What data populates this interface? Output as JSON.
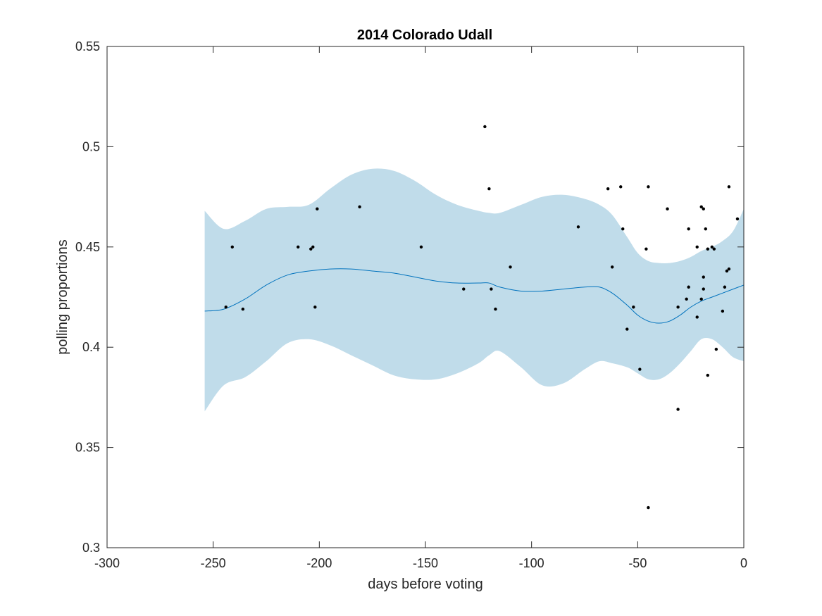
{
  "chart_data": {
    "type": "scatter",
    "title": "2014 Colorado Udall",
    "xlabel": "days before voting",
    "ylabel": "polling proportions",
    "xlim": [
      -300,
      0
    ],
    "ylim": [
      0.3,
      0.55
    ],
    "xticks": [
      -300,
      -250,
      -200,
      -150,
      -100,
      -50,
      0
    ],
    "xtick_labels": [
      "-300",
      "-250",
      "-200",
      "-150",
      "-100",
      "-50",
      "0"
    ],
    "yticks": [
      0.3,
      0.35,
      0.4,
      0.45,
      0.5,
      0.55
    ],
    "ytick_labels": [
      "0.3",
      "0.35",
      "0.4",
      "0.45",
      "0.5",
      "0.55"
    ],
    "grid": false,
    "colors": {
      "band": "#c0dcea",
      "mean_line": "#0072bd",
      "points": "#000000",
      "axes": "#262626"
    },
    "points": [
      {
        "x": -244,
        "y": 0.42
      },
      {
        "x": -241,
        "y": 0.45
      },
      {
        "x": -236,
        "y": 0.419
      },
      {
        "x": -210,
        "y": 0.45
      },
      {
        "x": -204,
        "y": 0.449
      },
      {
        "x": -203,
        "y": 0.45
      },
      {
        "x": -202,
        "y": 0.42
      },
      {
        "x": -201,
        "y": 0.469
      },
      {
        "x": -181,
        "y": 0.47
      },
      {
        "x": -152,
        "y": 0.45
      },
      {
        "x": -132,
        "y": 0.429
      },
      {
        "x": -122,
        "y": 0.51
      },
      {
        "x": -120,
        "y": 0.479
      },
      {
        "x": -119,
        "y": 0.429
      },
      {
        "x": -117,
        "y": 0.419
      },
      {
        "x": -110,
        "y": 0.44
      },
      {
        "x": -78,
        "y": 0.46
      },
      {
        "x": -64,
        "y": 0.479
      },
      {
        "x": -62,
        "y": 0.44
      },
      {
        "x": -58,
        "y": 0.48
      },
      {
        "x": -57,
        "y": 0.459
      },
      {
        "x": -55,
        "y": 0.409
      },
      {
        "x": -52,
        "y": 0.42
      },
      {
        "x": -49,
        "y": 0.389
      },
      {
        "x": -46,
        "y": 0.449
      },
      {
        "x": -45,
        "y": 0.48
      },
      {
        "x": -45,
        "y": 0.32
      },
      {
        "x": -36,
        "y": 0.469
      },
      {
        "x": -31,
        "y": 0.42
      },
      {
        "x": -31,
        "y": 0.369
      },
      {
        "x": -27,
        "y": 0.424
      },
      {
        "x": -26,
        "y": 0.459
      },
      {
        "x": -26,
        "y": 0.43
      },
      {
        "x": -22,
        "y": 0.45
      },
      {
        "x": -22,
        "y": 0.415
      },
      {
        "x": -20,
        "y": 0.47
      },
      {
        "x": -20,
        "y": 0.424
      },
      {
        "x": -19,
        "y": 0.469
      },
      {
        "x": -19,
        "y": 0.435
      },
      {
        "x": -19,
        "y": 0.429
      },
      {
        "x": -18,
        "y": 0.459
      },
      {
        "x": -17,
        "y": 0.449
      },
      {
        "x": -17,
        "y": 0.386
      },
      {
        "x": -15,
        "y": 0.45
      },
      {
        "x": -14,
        "y": 0.449
      },
      {
        "x": -13,
        "y": 0.399
      },
      {
        "x": -10,
        "y": 0.418
      },
      {
        "x": -9,
        "y": 0.43
      },
      {
        "x": -8,
        "y": 0.438
      },
      {
        "x": -7,
        "y": 0.439
      },
      {
        "x": -7,
        "y": 0.48
      },
      {
        "x": -3,
        "y": 0.464
      }
    ],
    "mean_line": {
      "x": [
        -254,
        -245,
        -235,
        -225,
        -215,
        -205,
        -195,
        -185,
        -175,
        -165,
        -155,
        -145,
        -135,
        -125,
        -120,
        -115,
        -105,
        -95,
        -85,
        -75,
        -68,
        -62,
        -55,
        -50,
        -45,
        -40,
        -35,
        -30,
        -25,
        -20,
        -15,
        -10,
        -5,
        0
      ],
      "y": [
        0.418,
        0.419,
        0.424,
        0.431,
        0.436,
        0.438,
        0.439,
        0.439,
        0.438,
        0.437,
        0.435,
        0.433,
        0.432,
        0.432,
        0.432,
        0.43,
        0.428,
        0.428,
        0.429,
        0.43,
        0.43,
        0.427,
        0.421,
        0.416,
        0.413,
        0.412,
        0.413,
        0.416,
        0.42,
        0.423,
        0.425,
        0.427,
        0.429,
        0.431
      ]
    },
    "band": {
      "x": [
        -254,
        -245,
        -235,
        -225,
        -215,
        -205,
        -195,
        -185,
        -175,
        -165,
        -155,
        -145,
        -135,
        -125,
        -120,
        -115,
        -105,
        -95,
        -85,
        -75,
        -68,
        -62,
        -55,
        -50,
        -45,
        -40,
        -35,
        -30,
        -25,
        -20,
        -15,
        -10,
        -5,
        0
      ],
      "upper": [
        0.468,
        0.459,
        0.463,
        0.469,
        0.47,
        0.471,
        0.479,
        0.486,
        0.489,
        0.488,
        0.483,
        0.476,
        0.471,
        0.468,
        0.467,
        0.467,
        0.471,
        0.475,
        0.476,
        0.474,
        0.471,
        0.466,
        0.455,
        0.447,
        0.443,
        0.442,
        0.442,
        0.443,
        0.445,
        0.448,
        0.45,
        0.453,
        0.458,
        0.469
      ],
      "lower": [
        0.368,
        0.381,
        0.385,
        0.393,
        0.402,
        0.404,
        0.401,
        0.396,
        0.391,
        0.386,
        0.384,
        0.384,
        0.387,
        0.392,
        0.396,
        0.398,
        0.39,
        0.381,
        0.382,
        0.389,
        0.393,
        0.392,
        0.39,
        0.387,
        0.384,
        0.384,
        0.387,
        0.392,
        0.398,
        0.404,
        0.404,
        0.4,
        0.395,
        0.393
      ]
    }
  }
}
